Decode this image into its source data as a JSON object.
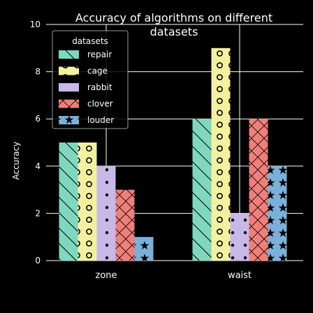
{
  "chart_data": {
    "type": "bar",
    "title_lines": [
      "Accuracy of algorithms on different",
      "datasets"
    ],
    "ylabel": "Accuracy",
    "xlabel": "",
    "ylim": [
      0,
      10
    ],
    "yticks": [
      "0",
      "2",
      "4",
      "6",
      "8",
      "10"
    ],
    "grid": true,
    "legend": {
      "title": "datasets",
      "position": "top-left"
    },
    "categories": [
      "zone",
      "waist"
    ],
    "series": [
      {
        "name": "repair",
        "values": [
          5,
          6
        ],
        "color": "#7fd8be",
        "pattern": "diagonal-lines"
      },
      {
        "name": "cage",
        "values": [
          5,
          9
        ],
        "color": "#f3f1a0",
        "pattern": "circles"
      },
      {
        "name": "rabbit",
        "values": [
          4,
          2
        ],
        "color": "#c7b8e8",
        "pattern": "dots"
      },
      {
        "name": "clover",
        "values": [
          3,
          6
        ],
        "color": "#f07f7a",
        "pattern": "crosshatch"
      },
      {
        "name": "louder",
        "values": [
          1,
          4
        ],
        "color": "#7ab0d9",
        "pattern": "stars"
      }
    ]
  }
}
